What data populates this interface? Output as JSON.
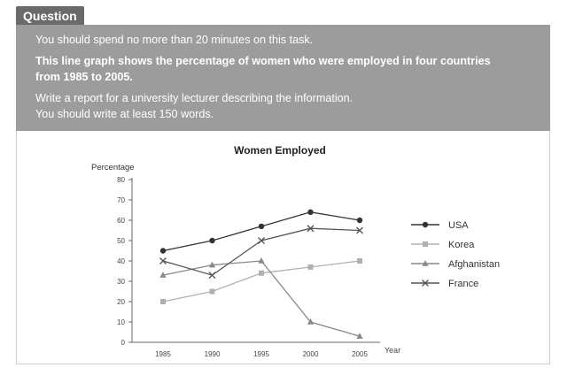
{
  "question": {
    "tab_label": "Question",
    "instruction_time": "You should spend no more than 20 minutes on this task.",
    "prompt_line1": "This line graph shows the percentage of women who were employed in four countries",
    "prompt_line2": "from 1985 to 2005.",
    "task_line1": "Write a report for a university lecturer describing the information.",
    "task_line2": "You should write at least 150 words."
  },
  "chart_data": {
    "type": "line",
    "title": "Women Employed",
    "ylabel": "Percentage",
    "xlabel": "Year",
    "x": [
      1985,
      1990,
      1995,
      2000,
      2005
    ],
    "ylim": [
      0,
      80
    ],
    "yticks": [
      0,
      10,
      20,
      30,
      40,
      50,
      60,
      70,
      80
    ],
    "grid": false,
    "legend": "right",
    "series": [
      {
        "name": "USA",
        "marker": "circle",
        "values": [
          45,
          50,
          57,
          64,
          60
        ]
      },
      {
        "name": "Korea",
        "marker": "square",
        "values": [
          20,
          25,
          34,
          37,
          40
        ]
      },
      {
        "name": "Afghanistan",
        "marker": "triangle",
        "values": [
          33,
          38,
          40,
          10,
          3
        ]
      },
      {
        "name": "France",
        "marker": "x",
        "values": [
          40,
          33,
          50,
          56,
          55
        ]
      }
    ],
    "colors": {
      "USA": "#333333",
      "Korea": "#b0b0b0",
      "Afghanistan": "#888888",
      "France": "#555555"
    }
  }
}
